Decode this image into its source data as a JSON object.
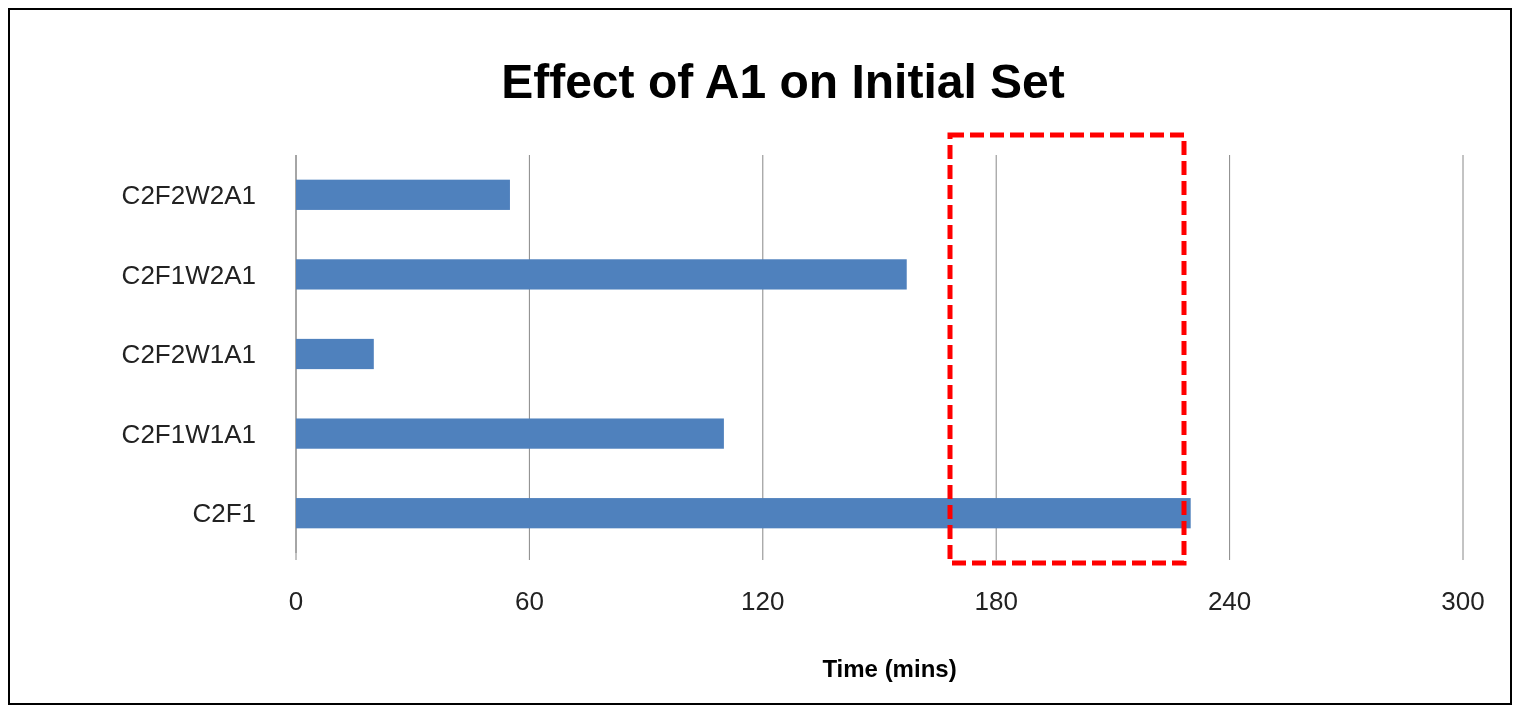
{
  "chart_data": {
    "type": "bar",
    "orientation": "horizontal",
    "title": "Effect of A1 on Initial Set",
    "xlabel": "Time (mins)",
    "categories": [
      "C2F2W2A1",
      "C2F1W2A1",
      "C2F2W1A1",
      "C2F1W1A1",
      "C2F1"
    ],
    "values": [
      55,
      157,
      20,
      110,
      230
    ],
    "color": "#4f81bd",
    "xlim": [
      0,
      300
    ],
    "xticks": [
      0,
      60,
      120,
      180,
      240,
      300
    ],
    "grid": "x"
  }
}
